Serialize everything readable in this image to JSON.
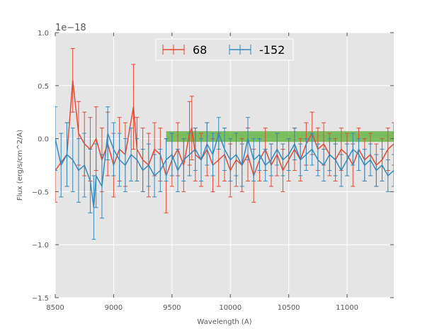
{
  "chart_data": {
    "type": "line",
    "title": "",
    "xlabel": "Wavelength (A)",
    "ylabel": "Flux (erg/s/cm^2/A)",
    "offset_text": "1e−18",
    "xlim": [
      8500,
      11400
    ],
    "ylim": [
      -1.5,
      1.0
    ],
    "grid": true,
    "legend_placement": "upper-center",
    "xticks": [
      8500,
      9000,
      9500,
      10000,
      10500,
      11000
    ],
    "xtick_labels": [
      "8500",
      "9000",
      "9500",
      "10000",
      "10500",
      "11000"
    ],
    "yticks": [
      -1.5,
      -1.0,
      -0.5,
      0.0,
      0.5,
      1.0
    ],
    "ytick_labels": [
      "−1.5",
      "−1.0",
      "−0.5",
      "0.0",
      "0.5",
      "1.0"
    ],
    "band": {
      "x": [
        9450,
        11400
      ],
      "y": [
        -0.03,
        0.07
      ],
      "color": "#4dac26"
    },
    "series": [
      {
        "name": "68",
        "color": "#e24a33",
        "x": [
          8500,
          8600,
          8650,
          8700,
          8750,
          8800,
          8850,
          8900,
          8950,
          9000,
          9050,
          9100,
          9170,
          9200,
          9250,
          9300,
          9350,
          9400,
          9450,
          9500,
          9550,
          9600,
          9650,
          9670,
          9700,
          9750,
          9800,
          9850,
          9900,
          9950,
          10000,
          10050,
          10100,
          10150,
          10200,
          10250,
          10300,
          10350,
          10400,
          10450,
          10500,
          10550,
          10600,
          10650,
          10700,
          10750,
          10800,
          10850,
          10900,
          10950,
          11000,
          11050,
          11100,
          11150,
          11200,
          11250,
          11300,
          11350,
          11400
        ],
        "y": [
          -0.3,
          -0.15,
          0.55,
          0.05,
          -0.05,
          -0.1,
          0.0,
          -0.2,
          -0.05,
          -0.25,
          -0.1,
          -0.15,
          0.3,
          -0.1,
          -0.2,
          -0.25,
          -0.1,
          -0.15,
          -0.35,
          -0.2,
          -0.1,
          -0.25,
          0.05,
          0.1,
          -0.15,
          -0.2,
          -0.1,
          -0.25,
          -0.2,
          -0.15,
          -0.3,
          -0.2,
          -0.25,
          -0.15,
          -0.35,
          -0.2,
          -0.1,
          -0.25,
          -0.15,
          -0.3,
          -0.2,
          -0.1,
          -0.2,
          -0.05,
          0.05,
          -0.1,
          -0.05,
          -0.15,
          -0.2,
          -0.1,
          -0.15,
          -0.25,
          -0.1,
          -0.2,
          -0.15,
          -0.25,
          -0.2,
          -0.1,
          -0.05
        ],
        "err": [
          0.3,
          0.3,
          0.3,
          0.3,
          0.3,
          0.3,
          0.3,
          0.3,
          0.3,
          0.3,
          0.3,
          0.3,
          0.4,
          0.3,
          0.3,
          0.3,
          0.25,
          0.25,
          0.35,
          0.25,
          0.25,
          0.25,
          0.3,
          0.3,
          0.25,
          0.25,
          0.25,
          0.25,
          0.25,
          0.25,
          0.25,
          0.25,
          0.25,
          0.25,
          0.25,
          0.2,
          0.2,
          0.2,
          0.2,
          0.2,
          0.2,
          0.2,
          0.2,
          0.2,
          0.2,
          0.2,
          0.2,
          0.2,
          0.2,
          0.2,
          0.2,
          0.2,
          0.2,
          0.2,
          0.2,
          0.2,
          0.2,
          0.2,
          0.2
        ]
      },
      {
        "name": "-152",
        "color": "#348abd",
        "x": [
          8500,
          8550,
          8600,
          8650,
          8700,
          8750,
          8800,
          8830,
          8850,
          8900,
          8950,
          9000,
          9050,
          9100,
          9150,
          9200,
          9250,
          9300,
          9350,
          9400,
          9450,
          9500,
          9550,
          9600,
          9650,
          9700,
          9750,
          9800,
          9850,
          9900,
          9950,
          10000,
          10050,
          10100,
          10150,
          10200,
          10250,
          10300,
          10350,
          10400,
          10450,
          10500,
          10550,
          10600,
          10650,
          10700,
          10750,
          10800,
          10850,
          10900,
          10950,
          11000,
          11050,
          11100,
          11150,
          11200,
          11250,
          11300,
          11350,
          11400
        ],
        "y": [
          0.0,
          -0.25,
          -0.15,
          -0.2,
          -0.3,
          -0.25,
          -0.4,
          -0.65,
          -0.35,
          -0.45,
          0.05,
          -0.1,
          -0.2,
          -0.25,
          -0.15,
          -0.2,
          -0.3,
          -0.25,
          -0.35,
          -0.3,
          -0.2,
          -0.15,
          -0.3,
          -0.2,
          -0.15,
          -0.1,
          -0.2,
          -0.05,
          -0.15,
          0.05,
          -0.1,
          -0.2,
          -0.15,
          -0.25,
          0.0,
          -0.2,
          -0.15,
          -0.25,
          -0.2,
          -0.1,
          -0.2,
          -0.15,
          -0.05,
          -0.2,
          -0.15,
          -0.1,
          -0.2,
          -0.25,
          -0.15,
          -0.2,
          -0.3,
          -0.2,
          -0.1,
          -0.15,
          -0.25,
          -0.2,
          -0.3,
          -0.25,
          -0.35,
          -0.3
        ],
        "err": [
          0.3,
          0.3,
          0.3,
          0.3,
          0.3,
          0.3,
          0.3,
          0.3,
          0.3,
          0.3,
          0.25,
          0.25,
          0.25,
          0.25,
          0.25,
          0.2,
          0.2,
          0.2,
          0.2,
          0.2,
          0.2,
          0.2,
          0.2,
          0.2,
          0.2,
          0.2,
          0.2,
          0.2,
          0.2,
          0.15,
          0.2,
          0.2,
          0.2,
          0.2,
          0.2,
          0.2,
          0.15,
          0.15,
          0.15,
          0.15,
          0.15,
          0.15,
          0.15,
          0.15,
          0.15,
          0.15,
          0.15,
          0.15,
          0.15,
          0.15,
          0.15,
          0.15,
          0.15,
          0.15,
          0.15,
          0.15,
          0.15,
          0.15,
          0.15,
          0.15
        ]
      }
    ]
  }
}
